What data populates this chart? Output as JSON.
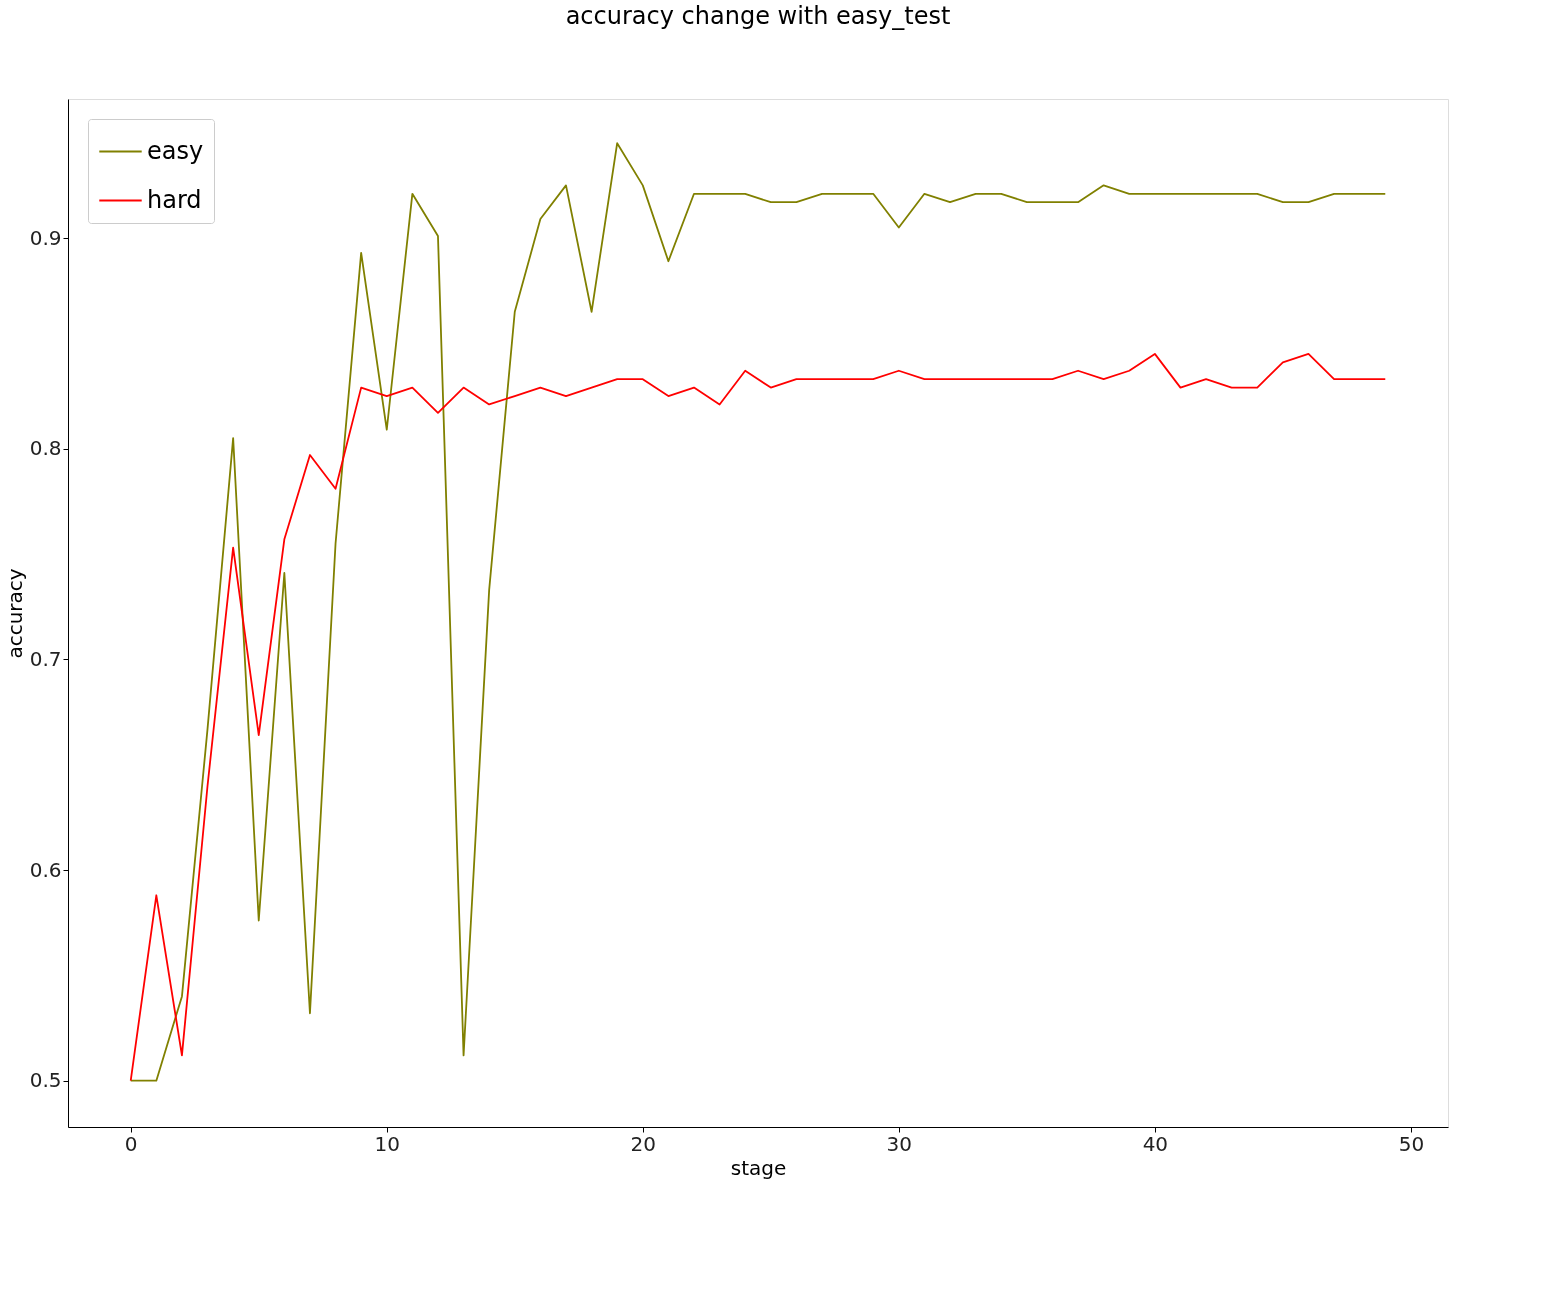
{
  "chart_data": {
    "type": "line",
    "title": "accuracy change with easy_test",
    "xlabel": "stage",
    "ylabel": "accuracy",
    "x": [
      0,
      1,
      2,
      3,
      4,
      5,
      6,
      7,
      8,
      9,
      10,
      11,
      12,
      13,
      14,
      15,
      16,
      17,
      18,
      19,
      20,
      21,
      22,
      23,
      24,
      25,
      26,
      27,
      28,
      29,
      30,
      31,
      32,
      33,
      34,
      35,
      36,
      37,
      38,
      39,
      40,
      41,
      42,
      43,
      44,
      45,
      46,
      47,
      48,
      49
    ],
    "series": [
      {
        "name": "easy",
        "color": "#808000",
        "values": [
          0.5,
          0.5,
          0.54,
          0.667,
          0.805,
          0.576,
          0.741,
          0.532,
          0.755,
          0.893,
          0.809,
          0.921,
          0.901,
          0.512,
          0.733,
          0.865,
          0.909,
          0.925,
          0.865,
          0.945,
          0.925,
          0.889,
          0.921,
          0.921,
          0.921,
          0.917,
          0.917,
          0.921,
          0.921,
          0.921,
          0.905,
          0.921,
          0.917,
          0.921,
          0.921,
          0.917,
          0.917,
          0.917,
          0.925,
          0.921,
          0.921,
          0.921,
          0.921,
          0.921,
          0.921,
          0.917,
          0.917,
          0.921,
          0.921,
          0.921
        ]
      },
      {
        "name": "hard",
        "color": "#ff0000",
        "values": [
          0.5,
          0.588,
          0.512,
          0.64,
          0.753,
          0.664,
          0.757,
          0.797,
          0.781,
          0.829,
          0.825,
          0.829,
          0.817,
          0.829,
          0.821,
          0.825,
          0.829,
          0.825,
          0.829,
          0.833,
          0.833,
          0.825,
          0.829,
          0.821,
          0.837,
          0.829,
          0.833,
          0.833,
          0.833,
          0.833,
          0.837,
          0.833,
          0.833,
          0.833,
          0.833,
          0.833,
          0.833,
          0.837,
          0.833,
          0.837,
          0.845,
          0.829,
          0.833,
          0.829,
          0.829,
          0.841,
          0.845,
          0.833,
          0.833,
          0.833
        ]
      }
    ],
    "xlim": [
      -2.45,
      51.45
    ],
    "ylim": [
      0.478,
      0.966
    ],
    "xticks": [
      0,
      10,
      20,
      30,
      40,
      50
    ],
    "yticks": [
      0.5,
      0.6,
      0.7,
      0.8,
      0.9
    ],
    "grid": false,
    "legend": "top left",
    "line_style": "solid",
    "marker": "none"
  }
}
